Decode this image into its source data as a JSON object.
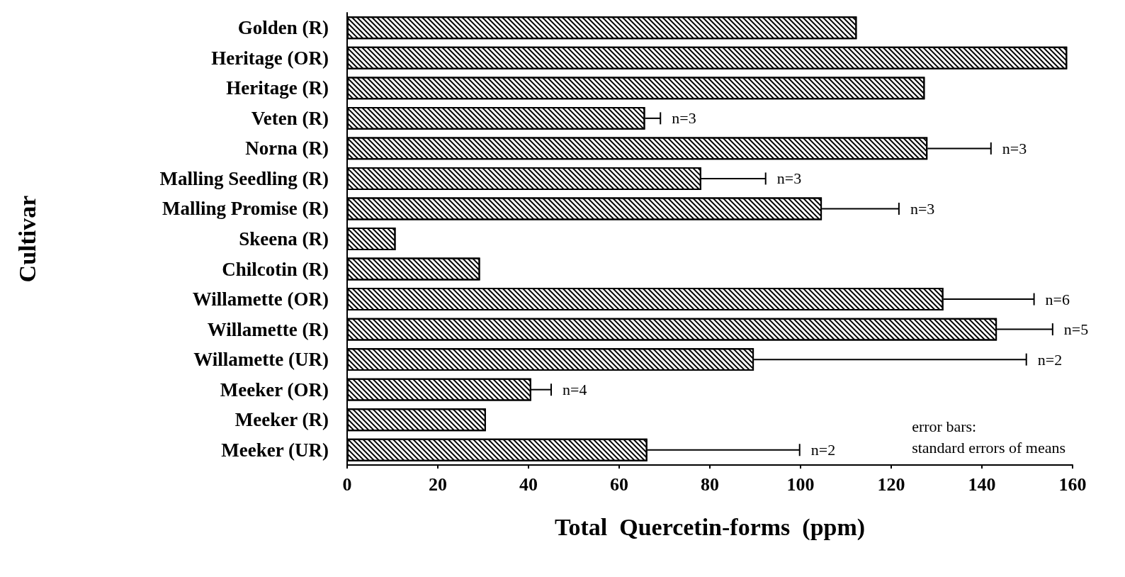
{
  "chart_data": {
    "type": "bar",
    "orientation": "horizontal",
    "xlabel": "Total  Quercetin-forms  (ppm)",
    "ylabel": "Cultivar",
    "categories": [
      "Golden (R)",
      "Heritage (OR)",
      "Heritage (R)",
      "Veten (R)",
      "Norna (R)",
      "Malling Seedling (R)",
      "Malling Promise (R)",
      "Skeena (R)",
      "Chilcotin (R)",
      "Willamette (OR)",
      "Willamette (R)",
      "Willamette (UR)",
      "Meeker (OR)",
      "Meeker (R)",
      "Meeker (UR)"
    ],
    "values": [
      112.4,
      158.8,
      127.4,
      65.7,
      128,
      78.1,
      104.7,
      10.7,
      29.3,
      131.5,
      143.3,
      89.7,
      40.6,
      30.6,
      66.2
    ],
    "errors": [
      null,
      null,
      null,
      [
        65.7,
        69.1
      ],
      [
        128,
        142
      ],
      [
        78.1,
        92.3
      ],
      [
        104.7,
        121.7
      ],
      null,
      null,
      [
        131.5,
        151.5
      ],
      [
        143.3,
        155.6
      ],
      [
        89.7,
        149.8
      ],
      [
        40.6,
        45
      ],
      null,
      [
        66.2,
        99.8
      ]
    ],
    "color": "#000000",
    "xlim": [
      0,
      160
    ],
    "xticks": [
      0,
      20,
      40,
      60,
      80,
      100,
      120,
      140,
      160
    ],
    "grid": false,
    "annotations": [
      {
        "text": "n=3",
        "x": 69.1,
        "y": "Veten (R)"
      },
      {
        "text": "n=3",
        "x": 142,
        "y": "Norna (R)"
      },
      {
        "text": "n=3",
        "x": 92.3,
        "y": "Malling Seedling (R)"
      },
      {
        "text": "n=3",
        "x": 121.7,
        "y": "Malling Promise (R)"
      },
      {
        "text": "n=6",
        "x": 151.5,
        "y": "Willamette (OR)"
      },
      {
        "text": "n=5",
        "x": 155.6,
        "y": "Willamette (R)"
      },
      {
        "text": "n=2",
        "x": 149.8,
        "y": "Willamette (UR)"
      },
      {
        "text": "n=4",
        "x": 45,
        "y": "Meeker (OR)"
      },
      {
        "text": "n=2",
        "x": 99.8,
        "y": "Meeker (UR)"
      },
      "error bars:\nstandard errors of means"
    ]
  }
}
